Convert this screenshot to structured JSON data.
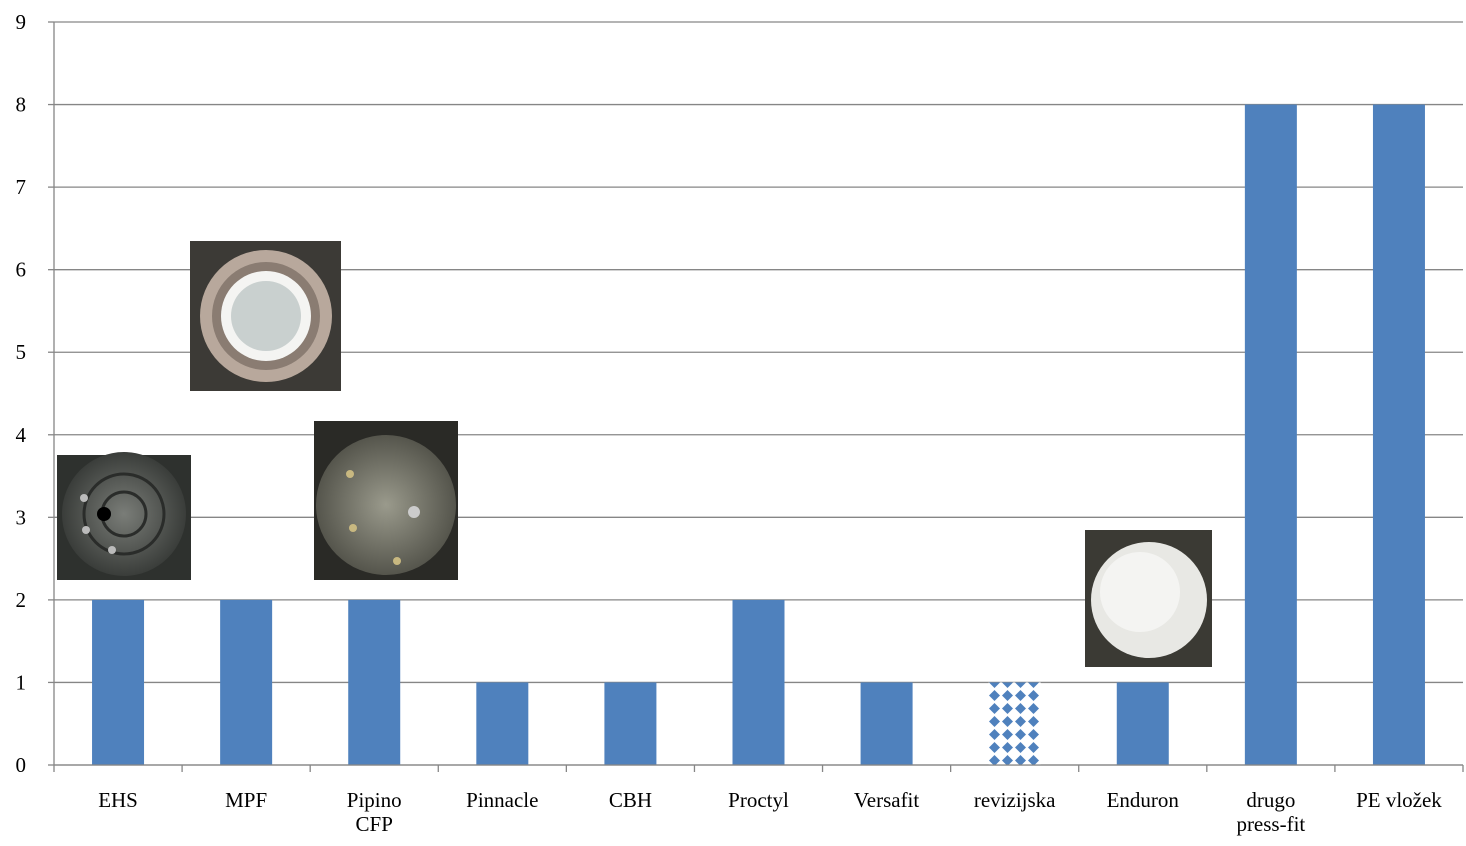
{
  "chart_data": {
    "type": "bar",
    "categories": [
      "EHS",
      "MPF",
      "Pipino\nCFP",
      "Pinnacle",
      "CBH",
      "Proctyl",
      "Versafit",
      "revizijska",
      "Enduron",
      "drugo\npress-fit",
      "PE vložek"
    ],
    "values": [
      2,
      2,
      2,
      1,
      1,
      2,
      1,
      1,
      1,
      8,
      8
    ],
    "color": "#4f81bd",
    "fill_styles": [
      "solid",
      "solid",
      "solid",
      "solid",
      "solid",
      "solid",
      "solid",
      "dotted",
      "solid",
      "solid",
      "solid"
    ],
    "ylim": [
      0,
      9
    ],
    "yticks": [
      0,
      1,
      2,
      3,
      4,
      5,
      6,
      7,
      8,
      9
    ],
    "grid": true
  }
}
